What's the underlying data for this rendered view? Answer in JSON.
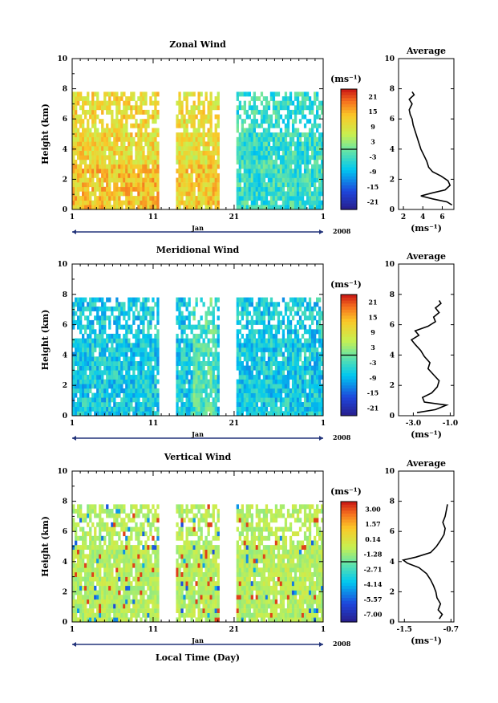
{
  "x_label": "Local Time (Day)",
  "month_label": "Jan",
  "year_label": "2008",
  "unit_label": "(ms⁻¹)",
  "average_title": "Average",
  "chart_data": [
    {
      "type": "heatmap",
      "title": "Zonal Wind",
      "ylabel": "Height (km)",
      "xticks": [
        "1",
        "11",
        "21",
        "1"
      ],
      "yticks": [
        "0",
        "2",
        "4",
        "6",
        "8",
        "10"
      ],
      "ylim": [
        0,
        10
      ],
      "colorbar_ticks": [
        "21",
        "15",
        "9",
        "3",
        "-3",
        "-9",
        "-15",
        "-21"
      ],
      "colorbar_range": [
        -24,
        24
      ],
      "data_gaps_days": [
        [
          11.6,
          13.8
        ],
        [
          19.2,
          21.2
        ]
      ],
      "average": {
        "title": "Average",
        "xticks": [
          "2",
          "4",
          "6"
        ],
        "xlim": [
          1.5,
          7.2
        ],
        "yticks": [
          "0",
          "2",
          "4",
          "6",
          "8",
          "10"
        ],
        "profile": [
          [
            7.0,
            0.3
          ],
          [
            6.5,
            0.5
          ],
          [
            5.0,
            0.7
          ],
          [
            3.8,
            0.9
          ],
          [
            5.0,
            1.1
          ],
          [
            6.3,
            1.3
          ],
          [
            6.8,
            1.6
          ],
          [
            6.6,
            1.9
          ],
          [
            5.9,
            2.2
          ],
          [
            5.0,
            2.5
          ],
          [
            4.6,
            2.8
          ],
          [
            4.4,
            3.2
          ],
          [
            4.1,
            3.6
          ],
          [
            3.8,
            4.0
          ],
          [
            3.6,
            4.4
          ],
          [
            3.4,
            4.8
          ],
          [
            3.2,
            5.2
          ],
          [
            3.0,
            5.6
          ],
          [
            2.9,
            6.0
          ],
          [
            2.7,
            6.3
          ],
          [
            2.6,
            6.6
          ],
          [
            2.9,
            7.0
          ],
          [
            2.6,
            7.3
          ],
          [
            3.1,
            7.6
          ],
          [
            2.9,
            7.8
          ]
        ]
      }
    },
    {
      "type": "heatmap",
      "title": "Meridional Wind",
      "ylabel": "Height (km)",
      "xticks": [
        "1",
        "11",
        "21",
        "1"
      ],
      "yticks": [
        "0",
        "2",
        "4",
        "6",
        "8",
        "10"
      ],
      "ylim": [
        0,
        10
      ],
      "colorbar_ticks": [
        "21",
        "15",
        "9",
        "3",
        "-3",
        "-9",
        "-15",
        "-21"
      ],
      "colorbar_range": [
        -24,
        24
      ],
      "data_gaps_days": [
        [
          11.6,
          13.8
        ],
        [
          19.2,
          21.2
        ]
      ],
      "average": {
        "title": "Average",
        "xticks": [
          "-3.0",
          "-1.0"
        ],
        "xlim": [
          -3.8,
          -0.8
        ],
        "yticks": [
          "0",
          "2",
          "4",
          "6",
          "8",
          "10"
        ],
        "profile": [
          [
            -2.8,
            0.2
          ],
          [
            -1.8,
            0.4
          ],
          [
            -1.2,
            0.7
          ],
          [
            -2.4,
            0.9
          ],
          [
            -2.5,
            1.2
          ],
          [
            -2.0,
            1.5
          ],
          [
            -1.7,
            1.9
          ],
          [
            -1.6,
            2.3
          ],
          [
            -1.9,
            2.7
          ],
          [
            -2.2,
            3.1
          ],
          [
            -2.1,
            3.5
          ],
          [
            -2.4,
            3.9
          ],
          [
            -2.6,
            4.3
          ],
          [
            -2.9,
            4.7
          ],
          [
            -3.1,
            5.0
          ],
          [
            -2.7,
            5.3
          ],
          [
            -2.9,
            5.6
          ],
          [
            -2.2,
            5.9
          ],
          [
            -1.8,
            6.2
          ],
          [
            -1.9,
            6.5
          ],
          [
            -1.6,
            6.8
          ],
          [
            -1.8,
            7.1
          ],
          [
            -1.5,
            7.4
          ],
          [
            -1.6,
            7.6
          ]
        ]
      }
    },
    {
      "type": "heatmap",
      "title": "Vertical Wind",
      "ylabel": "Height (km)",
      "xticks": [
        "1",
        "11",
        "21",
        "1"
      ],
      "yticks": [
        "0",
        "2",
        "4",
        "6",
        "8",
        "10"
      ],
      "ylim": [
        0,
        10
      ],
      "colorbar_ticks": [
        "3.00",
        "1.57",
        "0.14",
        "-1.28",
        "-2.71",
        "-4.14",
        "-5.57",
        "-7.00"
      ],
      "colorbar_range": [
        -7.7,
        3.7
      ],
      "data_gaps_days": [
        [
          11.6,
          13.8
        ],
        [
          19.2,
          21.2
        ]
      ],
      "average": {
        "title": "Average",
        "xticks": [
          "-1.5",
          "-0.7"
        ],
        "xlim": [
          -1.6,
          -0.65
        ],
        "yticks": [
          "0",
          "2",
          "4",
          "6",
          "8",
          "10"
        ],
        "profile": [
          [
            -0.9,
            0.2
          ],
          [
            -0.85,
            0.5
          ],
          [
            -0.92,
            0.8
          ],
          [
            -0.88,
            1.2
          ],
          [
            -0.94,
            1.6
          ],
          [
            -0.96,
            2.0
          ],
          [
            -1.0,
            2.4
          ],
          [
            -1.05,
            2.8
          ],
          [
            -1.12,
            3.2
          ],
          [
            -1.25,
            3.6
          ],
          [
            -1.45,
            3.9
          ],
          [
            -1.52,
            4.1
          ],
          [
            -1.3,
            4.3
          ],
          [
            -1.05,
            4.6
          ],
          [
            -0.95,
            5.0
          ],
          [
            -0.88,
            5.4
          ],
          [
            -0.82,
            5.8
          ],
          [
            -0.8,
            6.2
          ],
          [
            -0.84,
            6.6
          ],
          [
            -0.8,
            7.0
          ],
          [
            -0.78,
            7.4
          ],
          [
            -0.76,
            7.8
          ]
        ]
      }
    }
  ]
}
